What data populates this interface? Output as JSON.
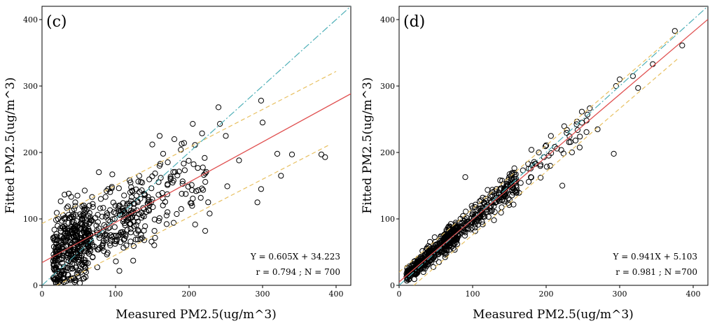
{
  "chart_data": [
    {
      "type": "scatter",
      "panel": "(c)",
      "xlabel": "Measured PM2.5(ug/m^3)",
      "ylabel": "Fitted PM2.5(ug/m^3)",
      "xlim": [
        0,
        420
      ],
      "ylim": [
        0,
        420
      ],
      "xticks": [
        0,
        100,
        200,
        300,
        400
      ],
      "yticks": [
        0,
        100,
        200,
        300,
        400
      ],
      "fit": {
        "slope": 0.605,
        "intercept": 34.223,
        "color": "#e05050"
      },
      "identity_line": {
        "color": "#4fb0b8"
      },
      "prediction_band": {
        "color": "#e8c060",
        "upper": [
          [
            0,
            93
          ],
          [
            400,
            322
          ]
        ],
        "lower": [
          [
            20,
            0
          ],
          [
            390,
            211
          ]
        ]
      },
      "stats": {
        "equation": "Y = 0.605X + 34.223",
        "summary": "r = 0.794 ; N = 700"
      },
      "n_points": 700,
      "r": 0.794,
      "noise_sd": 30,
      "highlight_points": [
        [
          30,
          5
        ],
        [
          60,
          20
        ],
        [
          80,
          130
        ],
        [
          90,
          145
        ],
        [
          120,
          140
        ],
        [
          150,
          212
        ],
        [
          160,
          225
        ],
        [
          180,
          220
        ],
        [
          190,
          213
        ],
        [
          205,
          243
        ],
        [
          240,
          268
        ],
        [
          242,
          243
        ],
        [
          250,
          225
        ],
        [
          252,
          149
        ],
        [
          222,
          82
        ],
        [
          228,
          108
        ],
        [
          268,
          188
        ],
        [
          293,
          125
        ],
        [
          298,
          145
        ],
        [
          298,
          278
        ],
        [
          300,
          245
        ],
        [
          320,
          198
        ],
        [
          325,
          165
        ],
        [
          340,
          197
        ],
        [
          380,
          197
        ],
        [
          385,
          193
        ]
      ]
    },
    {
      "type": "scatter",
      "panel": "(d)",
      "xlabel": "Measured PM2.5(ug/m^3)",
      "ylabel": "Fitted PM2.5(ug/m^3)",
      "xlim": [
        0,
        420
      ],
      "ylim": [
        0,
        420
      ],
      "xticks": [
        0,
        100,
        200,
        300,
        400
      ],
      "yticks": [
        0,
        100,
        200,
        300,
        400
      ],
      "fit": {
        "slope": 0.941,
        "intercept": 5.103,
        "color": "#e05050"
      },
      "identity_line": {
        "color": "#4fb0b8"
      },
      "prediction_band": {
        "color": "#e8c060",
        "upper": [
          [
            0,
            20
          ],
          [
            380,
            382
          ]
        ],
        "lower": [
          [
            20,
            0
          ],
          [
            380,
            342
          ]
        ]
      },
      "stats": {
        "equation": "Y = 0.941X + 5.103",
        "summary": "r = 0.981 ; N =700"
      },
      "n_points": 700,
      "r": 0.981,
      "noise_sd": 9,
      "highlight_points": [
        [
          90,
          163
        ],
        [
          180,
          204
        ],
        [
          185,
          183
        ],
        [
          190,
          200
        ],
        [
          222,
          150
        ],
        [
          240,
          218
        ],
        [
          255,
          248
        ],
        [
          270,
          235
        ],
        [
          292,
          198
        ],
        [
          295,
          300
        ],
        [
          300,
          310
        ],
        [
          318,
          315
        ],
        [
          325,
          297
        ],
        [
          345,
          333
        ],
        [
          375,
          383
        ],
        [
          385,
          361
        ]
      ]
    }
  ]
}
